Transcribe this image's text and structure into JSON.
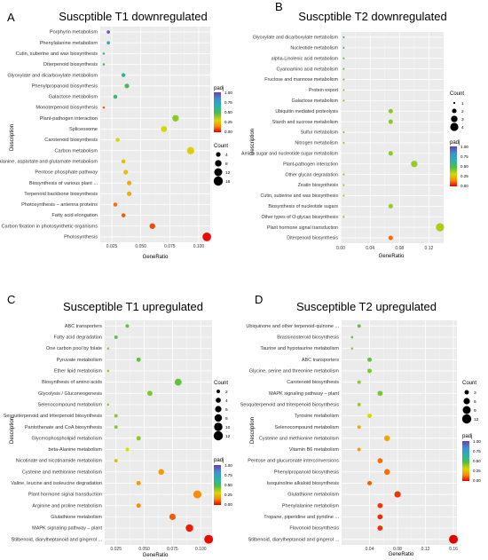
{
  "colors": {
    "panel_bg": "#ebebeb",
    "grid_major": "#ffffff",
    "grid_minor": "#f4f4f4",
    "dot_stroke": "none",
    "padj_scale": [
      "#e60000",
      "#ff8a00",
      "#d8d800",
      "#4cbb4c",
      "#25b2b0",
      "#3f8fd6",
      "#6a3fb3"
    ]
  },
  "chart_data": [
    {
      "type": "scatter",
      "panel_letter": "A",
      "title": "Suscptible T1 downregulated",
      "xlabel": "GeneRatio",
      "ylabel": "Description",
      "xlim": [
        0.015,
        0.11
      ],
      "xticks": [
        0.025,
        0.05,
        0.075,
        0.1
      ],
      "xtick_labels": [
        "0.025",
        "0.050",
        "0.075",
        "0.100"
      ],
      "padj_title": "padj",
      "padj_range": [
        0,
        1
      ],
      "padj_ticks": [
        "1.00",
        "0.75",
        "0.50",
        "0.25",
        "0.00"
      ],
      "count_title": "Count",
      "count_legend": [
        4,
        8,
        12,
        16
      ],
      "count_range": [
        1,
        16
      ],
      "categories": [
        "Porphyrin metabolism",
        "Phenylalanine metabolism",
        "Cutin, suberine and wax biosynthesis",
        "Diterpenoid biosynthesis",
        "Glyoxylate and dicarboxylate metabolism",
        "Phenylpropanoid biosynthesis",
        "Galactose metabolism",
        "Monoterpenoid biosynthesis",
        "Plant-pathogen interaction",
        "Spliceosome",
        "Carotenoid biosynthesis",
        "Carbon metabolism",
        "Alanine, aspartate and glutamate metabolism",
        "Pentose phosphate pathway",
        "Biosynthesis of various plant ...",
        "Terpenoid backbone biosynthesis",
        "Photosynthesis – antenna proteins",
        "Fatty acid elongation",
        "Carbon fixation in photosynthetic organisms",
        "Photosynthesis"
      ],
      "points": [
        {
          "x": 0.022,
          "count": 2,
          "padj": 0.95
        },
        {
          "x": 0.022,
          "count": 2,
          "padj": 0.72
        },
        {
          "x": 0.018,
          "count": 1,
          "padj": 0.6
        },
        {
          "x": 0.018,
          "count": 1,
          "padj": 0.5
        },
        {
          "x": 0.035,
          "count": 3,
          "padj": 0.62
        },
        {
          "x": 0.038,
          "count": 4,
          "padj": 0.5
        },
        {
          "x": 0.028,
          "count": 3,
          "padj": 0.55
        },
        {
          "x": 0.018,
          "count": 1,
          "padj": 0.1
        },
        {
          "x": 0.08,
          "count": 8,
          "padj": 0.4
        },
        {
          "x": 0.07,
          "count": 7,
          "padj": 0.3
        },
        {
          "x": 0.03,
          "count": 3,
          "padj": 0.3
        },
        {
          "x": 0.093,
          "count": 10,
          "padj": 0.28
        },
        {
          "x": 0.035,
          "count": 3,
          "padj": 0.25
        },
        {
          "x": 0.037,
          "count": 4,
          "padj": 0.25
        },
        {
          "x": 0.04,
          "count": 4,
          "padj": 0.22
        },
        {
          "x": 0.04,
          "count": 4,
          "padj": 0.22
        },
        {
          "x": 0.028,
          "count": 3,
          "padj": 0.12
        },
        {
          "x": 0.035,
          "count": 3,
          "padj": 0.1
        },
        {
          "x": 0.06,
          "count": 6,
          "padj": 0.08
        },
        {
          "x": 0.107,
          "count": 14,
          "padj": 0.01
        }
      ]
    },
    {
      "type": "scatter",
      "panel_letter": "B",
      "title": "Suscptible T2 downregulated",
      "xlabel": "GeneRatio",
      "ylabel": "Description",
      "xlim": [
        0.0,
        0.14
      ],
      "xticks": [
        0.0,
        0.04,
        0.08,
        0.12
      ],
      "xtick_labels": [
        "0.00",
        "0.04",
        "0.08",
        "0.12"
      ],
      "padj_title": "padj",
      "padj_range": [
        0,
        1
      ],
      "padj_ticks": [
        "1.00",
        "0.75",
        "0.50",
        "0.25",
        "0.00"
      ],
      "count_title": "Count",
      "count_legend": [
        1,
        2,
        3,
        4
      ],
      "count_range": [
        1,
        4
      ],
      "categories": [
        "Glyoxylate and dicarboxylate metabolism",
        "Nucleotide metabolism",
        "alpha-Linolenic acid metabolism",
        "Cyanoamino acid metabolism",
        "Fructose and mannose metabolism",
        "Protein export",
        "Galactose metabolism",
        "Ubiquitin mediated proteolysis",
        "Starch and sucrose metabolism",
        "Sulfur metabolism",
        "Nitrogen metabolism",
        "Amino sugar and nucleotide sugar metabolism",
        "Plant-pathogen interaction",
        "Other glycan degradation",
        "Zeatin biosynthesis",
        "Cutin, suberine and wax biosynthesis",
        "Biosynthesis of nucleotide sugars",
        "Other types of O-glycan biosynthesis",
        "Plant hormone signal transduction",
        "Diterpenoid biosynthesis"
      ],
      "points": [
        {
          "x": 0.004,
          "count": 1,
          "padj": 0.5
        },
        {
          "x": 0.004,
          "count": 1,
          "padj": 0.5
        },
        {
          "x": 0.004,
          "count": 1,
          "padj": 0.45
        },
        {
          "x": 0.004,
          "count": 1,
          "padj": 0.45
        },
        {
          "x": 0.004,
          "count": 1,
          "padj": 0.45
        },
        {
          "x": 0.004,
          "count": 1,
          "padj": 0.4
        },
        {
          "x": 0.004,
          "count": 1,
          "padj": 0.4
        },
        {
          "x": 0.068,
          "count": 2,
          "padj": 0.4
        },
        {
          "x": 0.068,
          "count": 2,
          "padj": 0.4
        },
        {
          "x": 0.004,
          "count": 1,
          "padj": 0.4
        },
        {
          "x": 0.004,
          "count": 1,
          "padj": 0.4
        },
        {
          "x": 0.068,
          "count": 2,
          "padj": 0.4
        },
        {
          "x": 0.1,
          "count": 3,
          "padj": 0.38
        },
        {
          "x": 0.004,
          "count": 1,
          "padj": 0.38
        },
        {
          "x": 0.004,
          "count": 1,
          "padj": 0.38
        },
        {
          "x": 0.004,
          "count": 1,
          "padj": 0.38
        },
        {
          "x": 0.068,
          "count": 2,
          "padj": 0.38
        },
        {
          "x": 0.004,
          "count": 1,
          "padj": 0.38
        },
        {
          "x": 0.135,
          "count": 4,
          "padj": 0.36
        },
        {
          "x": 0.068,
          "count": 2,
          "padj": 0.12
        }
      ]
    },
    {
      "type": "scatter",
      "panel_letter": "C",
      "title": "Susceptible T1 upregulated",
      "xlabel": "GeneRatio",
      "ylabel": "Description",
      "xlim": [
        0.015,
        0.11
      ],
      "xticks": [
        0.025,
        0.05,
        0.075,
        0.1
      ],
      "xtick_labels": [
        "0.025",
        "0.050",
        "0.075",
        "0.100"
      ],
      "padj_title": "padj",
      "padj_range": [
        0,
        1
      ],
      "padj_ticks": [
        "1.00",
        "0.75",
        "0.50",
        "0.25",
        "0.00"
      ],
      "count_title": "Count",
      "count_legend": [
        2,
        4,
        6,
        8,
        10,
        12
      ],
      "count_range": [
        1,
        12
      ],
      "categories": [
        "ABC transporters",
        "Fatty acid degradation",
        "One carbon pool by folate",
        "Pyruvate metabolism",
        "Ether lipid metabolism",
        "Biosynthesis of amino acids",
        "Glycolysis / Gluconeogenesis",
        "Selenocompound metabolism",
        "Sesquiterpenoid and triterpenoid biosynthesis",
        "Pantothenate and CoA biosynthesis",
        "Glycerophospholipid metabolism",
        "beta-Alanine metabolism",
        "Nicotinate and nicotinamide metabolism",
        "Cysteine and methionine metabolism",
        "Valine, leucine and isoleucine degradation",
        "Plant hormone signal transduction",
        "Arginine and proline metabolism",
        "Glutathione metabolism",
        "MAPK signaling pathway – plant",
        "Stilbenoid, diarylheptanoid and gingerol ..."
      ],
      "points": [
        {
          "x": 0.035,
          "count": 2,
          "padj": 0.45
        },
        {
          "x": 0.025,
          "count": 2,
          "padj": 0.45
        },
        {
          "x": 0.018,
          "count": 1,
          "padj": 0.4
        },
        {
          "x": 0.045,
          "count": 3,
          "padj": 0.45
        },
        {
          "x": 0.018,
          "count": 1,
          "padj": 0.4
        },
        {
          "x": 0.08,
          "count": 7,
          "padj": 0.45
        },
        {
          "x": 0.055,
          "count": 4,
          "padj": 0.42
        },
        {
          "x": 0.018,
          "count": 1,
          "padj": 0.4
        },
        {
          "x": 0.025,
          "count": 2,
          "padj": 0.4
        },
        {
          "x": 0.025,
          "count": 2,
          "padj": 0.4
        },
        {
          "x": 0.045,
          "count": 3,
          "padj": 0.4
        },
        {
          "x": 0.035,
          "count": 2,
          "padj": 0.3
        },
        {
          "x": 0.025,
          "count": 2,
          "padj": 0.25
        },
        {
          "x": 0.065,
          "count": 5,
          "padj": 0.18
        },
        {
          "x": 0.045,
          "count": 3,
          "padj": 0.18
        },
        {
          "x": 0.097,
          "count": 9,
          "padj": 0.15
        },
        {
          "x": 0.045,
          "count": 3,
          "padj": 0.15
        },
        {
          "x": 0.075,
          "count": 6,
          "padj": 0.1
        },
        {
          "x": 0.09,
          "count": 8,
          "padj": 0.03
        },
        {
          "x": 0.107,
          "count": 11,
          "padj": 0.01
        }
      ]
    },
    {
      "type": "scatter",
      "panel_letter": "D",
      "title": "Susceptible T2 upregulated",
      "xlabel": "GeneRatio",
      "ylabel": "Description",
      "xlim": [
        0.0,
        0.165
      ],
      "xticks": [
        0.04,
        0.08,
        0.12,
        0.16
      ],
      "xtick_labels": [
        "0.04",
        "0.08",
        "0.12",
        "0.16"
      ],
      "padj_title": "padj",
      "padj_range": [
        0,
        1
      ],
      "padj_ticks": [
        "1.00",
        "0.75",
        "0.50",
        "0.25",
        "0.00"
      ],
      "count_title": "Count",
      "count_legend": [
        3,
        6,
        9,
        12
      ],
      "count_range": [
        1,
        12
      ],
      "categories": [
        "Ubiquinone and other terpenoid-quinone ...",
        "Brassinosteroid biosynthesis",
        "Taurine and hypotaurine metabolism",
        "ABC transporters",
        "Glycine, serine and threonine metabolism",
        "Carotenoid biosynthesis",
        "MAPK signaling pathway – plant",
        "Sesquiterpenoid and triterpenoid biosynthesis",
        "Tyrosine metabolism",
        "Selenocompound metabolism",
        "Cysteine and methionine metabolism",
        "Vitamin B6 metabolism",
        "Pentose and glucuronate interconversions",
        "Phenylpropanoid biosynthesis",
        "Isoquinoline alkaloid biosynthesis",
        "Glutathione metabolism",
        "Phenylalanine metabolism",
        "Tropane, piperidine and pyridine ...",
        "Flavonoid biosynthesis",
        "Stilbenoid, diarylheptanoid and gingerol ..."
      ],
      "points": [
        {
          "x": 0.025,
          "count": 2,
          "padj": 0.45
        },
        {
          "x": 0.015,
          "count": 1,
          "padj": 0.45
        },
        {
          "x": 0.015,
          "count": 1,
          "padj": 0.4
        },
        {
          "x": 0.04,
          "count": 3,
          "padj": 0.45
        },
        {
          "x": 0.04,
          "count": 3,
          "padj": 0.42
        },
        {
          "x": 0.025,
          "count": 2,
          "padj": 0.4
        },
        {
          "x": 0.055,
          "count": 4,
          "padj": 0.42
        },
        {
          "x": 0.025,
          "count": 2,
          "padj": 0.38
        },
        {
          "x": 0.04,
          "count": 3,
          "padj": 0.3
        },
        {
          "x": 0.025,
          "count": 2,
          "padj": 0.2
        },
        {
          "x": 0.065,
          "count": 5,
          "padj": 0.2
        },
        {
          "x": 0.025,
          "count": 2,
          "padj": 0.18
        },
        {
          "x": 0.055,
          "count": 4,
          "padj": 0.12
        },
        {
          "x": 0.065,
          "count": 5,
          "padj": 0.12
        },
        {
          "x": 0.04,
          "count": 3,
          "padj": 0.1
        },
        {
          "x": 0.08,
          "count": 6,
          "padj": 0.06
        },
        {
          "x": 0.055,
          "count": 4,
          "padj": 0.06
        },
        {
          "x": 0.055,
          "count": 4,
          "padj": 0.05
        },
        {
          "x": 0.055,
          "count": 4,
          "padj": 0.05
        },
        {
          "x": 0.16,
          "count": 11,
          "padj": 0.0
        }
      ]
    }
  ]
}
